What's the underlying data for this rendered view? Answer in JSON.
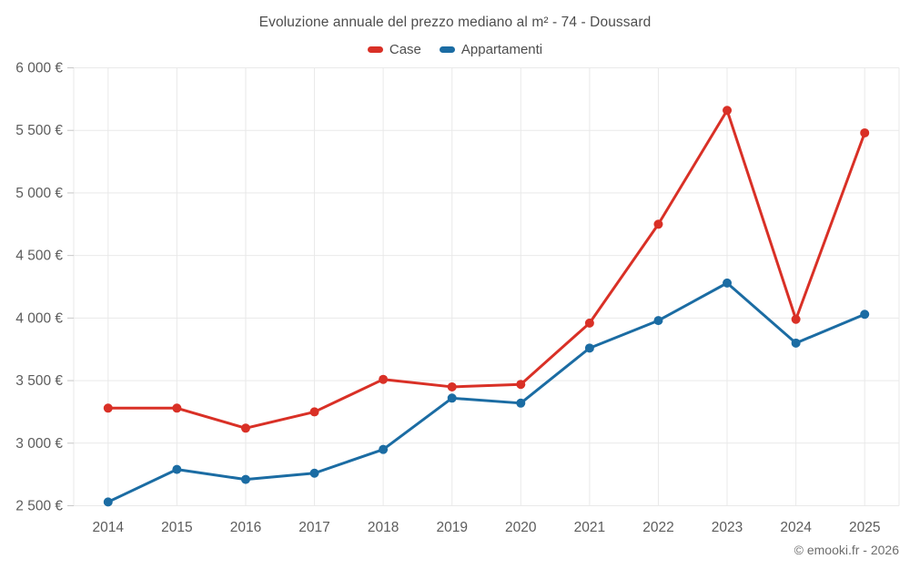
{
  "page": {
    "footer": "© emooki.fr - 2026"
  },
  "chart_data": {
    "type": "line",
    "title": "Evoluzione annuale del prezzo mediano al m² - 74 - Doussard",
    "categories": [
      "2014",
      "2015",
      "2016",
      "2017",
      "2018",
      "2019",
      "2020",
      "2021",
      "2022",
      "2023",
      "2024",
      "2025"
    ],
    "series": [
      {
        "name": "Case",
        "color": "#d93026",
        "values": [
          3280,
          3280,
          3120,
          3250,
          3510,
          3450,
          3470,
          3960,
          4750,
          5660,
          3990,
          5480
        ]
      },
      {
        "name": "Appartamenti",
        "color": "#1b6ca3",
        "values": [
          2530,
          2790,
          2710,
          2760,
          2950,
          3360,
          3320,
          3760,
          3980,
          4280,
          3800,
          4030
        ]
      }
    ],
    "ylim": [
      2500,
      6000
    ],
    "y_tick_step": 500,
    "y_tick_labels": [
      "2 500 €",
      "3 000 €",
      "3 500 €",
      "4 000 €",
      "4 500 €",
      "5 000 €",
      "5 500 €",
      "6 000 €"
    ],
    "unit": "€",
    "grid": true,
    "legend_position": "top",
    "colors": {
      "gridline": "#e9e9e9",
      "tick_mark": "#c7c7c7",
      "axis_text": "#5c5c5c"
    }
  }
}
